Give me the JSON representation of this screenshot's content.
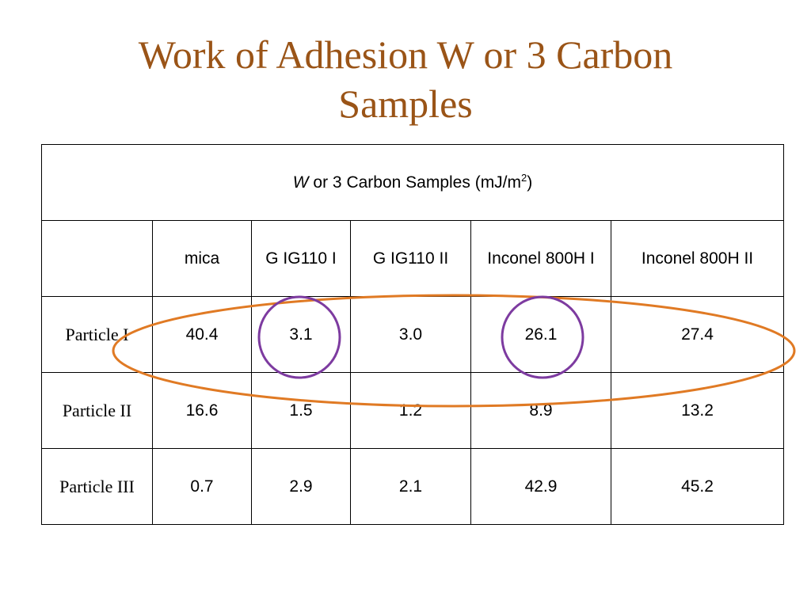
{
  "slide": {
    "title_line1": "Work of Adhesion W or 3  Carbon",
    "title_line2": "Samples"
  },
  "table": {
    "caption_symbol": "W",
    "caption_text": " or 3  Carbon Samples  (mJ/m",
    "caption_sup": "2",
    "caption_close": ")",
    "corner": "",
    "columns": [
      "mica",
      "G IG110 I",
      "G IG110 II",
      "Inconel 800H I",
      "Inconel 800H II"
    ],
    "rows": [
      {
        "label": "Particle I",
        "values": [
          "40.4",
          "3.1",
          "3.0",
          "26.1",
          "27.4"
        ]
      },
      {
        "label": "Particle II",
        "values": [
          "16.6",
          "1.5",
          "1.2",
          "8.9",
          "13.2"
        ]
      },
      {
        "label": "Particle III",
        "values": [
          "0.7",
          "2.9",
          "2.1",
          "42.9",
          "45.2"
        ]
      }
    ]
  },
  "annotations": {
    "row_highlight_color": "#e07a24",
    "cell_highlight_color": "#7d3ba0",
    "highlighted_row": "Particle I",
    "highlighted_cells": [
      "G IG110 I",
      "Inconel 800H I"
    ]
  }
}
